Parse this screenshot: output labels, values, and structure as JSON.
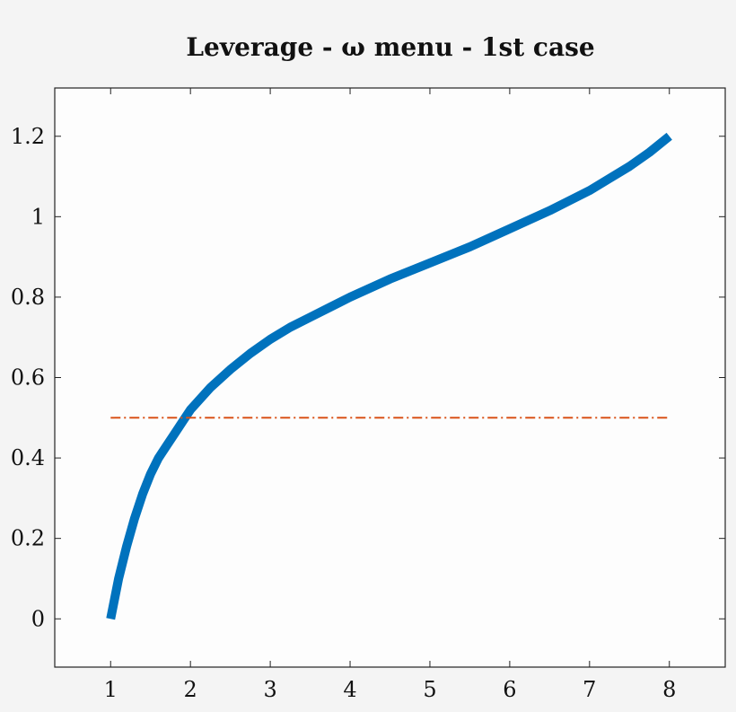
{
  "chart_data": {
    "type": "line",
    "title": "Leverage - ω menu - 1st case",
    "xlabel": "",
    "ylabel": "",
    "xlim": [
      0.3,
      8.7
    ],
    "ylim": [
      -0.12,
      1.32
    ],
    "x_ticks": [
      1,
      2,
      3,
      4,
      5,
      6,
      7,
      8
    ],
    "y_ticks": [
      0,
      0.2,
      0.4,
      0.6,
      0.8,
      1,
      1.2
    ],
    "x_tick_labels": [
      "1",
      "2",
      "3",
      "4",
      "5",
      "6",
      "7",
      "8"
    ],
    "y_tick_labels": [
      "0",
      "0.2",
      "0.4",
      "0.6",
      "0.8",
      "1",
      "1.2"
    ],
    "grid": false,
    "series": [
      {
        "style": "solid",
        "color": "#0072bd",
        "x": [
          1.0,
          1.1,
          1.2,
          1.3,
          1.4,
          1.5,
          1.6,
          1.7,
          1.8,
          1.9,
          2.0,
          2.25,
          2.5,
          2.75,
          3.0,
          3.25,
          3.5,
          3.75,
          4.0,
          4.5,
          5.0,
          5.5,
          6.0,
          6.5,
          7.0,
          7.25,
          7.5,
          7.75,
          8.0
        ],
        "y": [
          0.0,
          0.1,
          0.18,
          0.25,
          0.31,
          0.36,
          0.4,
          0.43,
          0.46,
          0.49,
          0.52,
          0.575,
          0.62,
          0.66,
          0.695,
          0.725,
          0.75,
          0.775,
          0.8,
          0.845,
          0.885,
          0.925,
          0.97,
          1.015,
          1.065,
          1.095,
          1.125,
          1.16,
          1.2
        ]
      },
      {
        "style": "dashdot",
        "color": "#d95319",
        "x": [
          1,
          8
        ],
        "y": [
          0.5,
          0.5
        ]
      }
    ],
    "colors": {
      "background": "#f4f4f4",
      "plot_background": "#fdfdfd",
      "axis": "#222222"
    }
  }
}
